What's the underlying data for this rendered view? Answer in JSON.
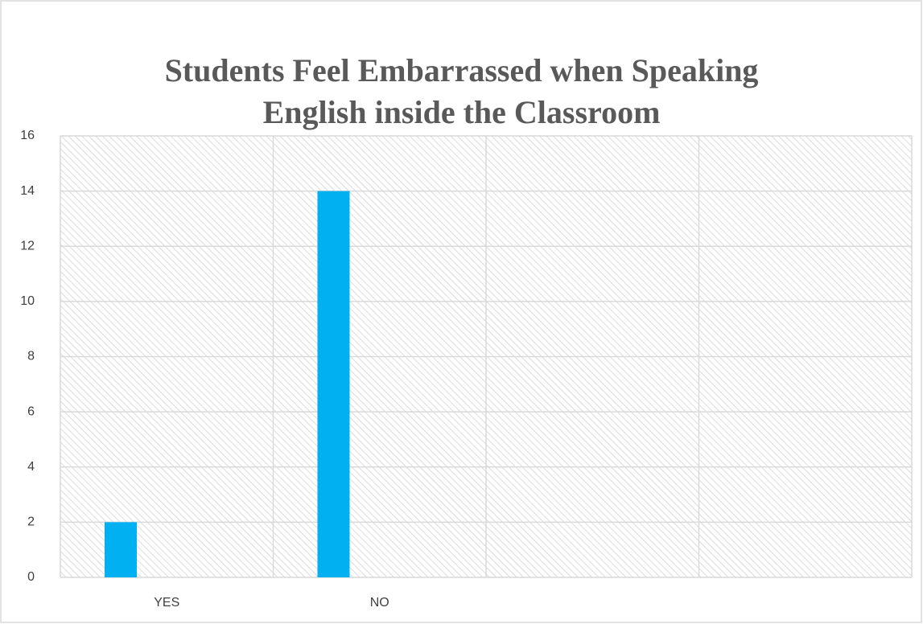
{
  "chart_data": {
    "type": "bar",
    "title": "Students Feel Embarrassed when Speaking English inside the Classroom",
    "categories": [
      "YES",
      "NO",
      null,
      null
    ],
    "values": [
      2,
      14,
      null,
      null
    ],
    "color": "#00b0f0",
    "ylim": [
      0,
      16
    ],
    "yticks": [
      0,
      2,
      4,
      6,
      8,
      10,
      12,
      14,
      16
    ],
    "grid": true
  }
}
